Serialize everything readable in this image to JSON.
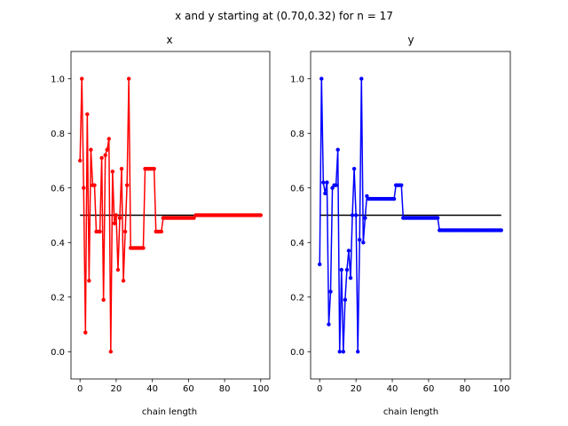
{
  "figure_title": "x and y starting at (0.70,0.32) for n = 17",
  "chart_data": [
    {
      "type": "line",
      "title": "x",
      "xlabel": "chain length",
      "ylabel": "",
      "xlim": [
        -5,
        105
      ],
      "ylim": [
        -0.1,
        1.1
      ],
      "xticks": [
        0,
        20,
        40,
        60,
        80,
        100
      ],
      "yticks": [
        0.0,
        0.2,
        0.4,
        0.6,
        0.8,
        1.0
      ],
      "xtick_labels": [
        "0",
        "20",
        "40",
        "60",
        "80",
        "100"
      ],
      "ytick_labels": [
        "0.0",
        "0.2",
        "0.4",
        "0.6",
        "0.8",
        "1.0"
      ],
      "series_color": "#ff0000",
      "reference_color": "#000000",
      "series": [
        {
          "x": [
            0,
            1,
            2,
            3,
            4,
            5,
            6,
            7,
            8,
            9,
            10,
            11,
            12,
            13,
            14,
            15,
            16,
            17,
            18,
            19,
            20,
            21,
            22,
            23,
            24,
            25,
            26,
            27,
            28,
            29,
            30,
            31,
            32,
            33,
            34,
            35,
            36,
            37,
            38,
            39,
            40,
            41,
            42,
            43,
            44,
            45,
            46,
            47,
            48,
            49,
            50,
            51,
            52,
            53,
            54,
            55,
            56,
            57,
            58,
            59,
            60,
            61,
            62,
            63,
            64,
            65,
            66,
            67,
            68,
            69,
            70,
            71,
            72,
            73,
            74,
            75,
            76,
            77,
            78,
            79,
            80,
            81,
            82,
            83,
            84,
            85,
            86,
            87,
            88,
            89,
            90,
            91,
            92,
            93,
            94,
            95,
            96,
            97,
            98,
            99,
            100
          ],
          "values": [
            0.7,
            1.0,
            0.6,
            0.07,
            0.87,
            0.26,
            0.74,
            0.61,
            0.61,
            0.44,
            0.44,
            0.44,
            0.71,
            0.19,
            0.72,
            0.74,
            0.78,
            0.0,
            0.66,
            0.47,
            0.5,
            0.3,
            0.49,
            0.67,
            0.26,
            0.44,
            0.61,
            1.0,
            0.38,
            0.38,
            0.38,
            0.38,
            0.38,
            0.38,
            0.38,
            0.38,
            0.67,
            0.67,
            0.67,
            0.67,
            0.67,
            0.67,
            0.44,
            0.44,
            0.44,
            0.44,
            0.49,
            0.49,
            0.49,
            0.49,
            0.49,
            0.49,
            0.49,
            0.49,
            0.49,
            0.49,
            0.49,
            0.49,
            0.49,
            0.49,
            0.49,
            0.49,
            0.49,
            0.49,
            0.5,
            0.5,
            0.5,
            0.5,
            0.5,
            0.5,
            0.5,
            0.5,
            0.5,
            0.5,
            0.5,
            0.5,
            0.5,
            0.5,
            0.5,
            0.5,
            0.5,
            0.5,
            0.5,
            0.5,
            0.5,
            0.5,
            0.5,
            0.5,
            0.5,
            0.5,
            0.5,
            0.5,
            0.5,
            0.5,
            0.5,
            0.5,
            0.5,
            0.5,
            0.5,
            0.5,
            0.5
          ]
        }
      ],
      "reference_line": {
        "x": [
          0,
          100
        ],
        "y": 0.5
      }
    },
    {
      "type": "line",
      "title": "y",
      "xlabel": "chain length",
      "ylabel": "",
      "xlim": [
        -5,
        105
      ],
      "ylim": [
        -0.1,
        1.1
      ],
      "xticks": [
        0,
        20,
        40,
        60,
        80,
        100
      ],
      "yticks": [
        0.0,
        0.2,
        0.4,
        0.6,
        0.8,
        1.0
      ],
      "xtick_labels": [
        "0",
        "20",
        "40",
        "60",
        "80",
        "100"
      ],
      "ytick_labels": [
        "0.0",
        "0.2",
        "0.4",
        "0.6",
        "0.8",
        "1.0"
      ],
      "series_color": "#0000ff",
      "reference_color": "#000000",
      "series": [
        {
          "x": [
            0,
            1,
            2,
            3,
            4,
            5,
            6,
            7,
            8,
            9,
            10,
            11,
            12,
            13,
            14,
            15,
            16,
            17,
            18,
            19,
            20,
            21,
            22,
            23,
            24,
            25,
            26,
            27,
            28,
            29,
            30,
            31,
            32,
            33,
            34,
            35,
            36,
            37,
            38,
            39,
            40,
            41,
            42,
            43,
            44,
            45,
            46,
            47,
            48,
            49,
            50,
            51,
            52,
            53,
            54,
            55,
            56,
            57,
            58,
            59,
            60,
            61,
            62,
            63,
            64,
            65,
            66,
            67,
            68,
            69,
            70,
            71,
            72,
            73,
            74,
            75,
            76,
            77,
            78,
            79,
            80,
            81,
            82,
            83,
            84,
            85,
            86,
            87,
            88,
            89,
            90,
            91,
            92,
            93,
            94,
            95,
            96,
            97,
            98,
            99,
            100
          ],
          "values": [
            0.32,
            1.0,
            0.62,
            0.58,
            0.62,
            0.1,
            0.22,
            0.6,
            0.61,
            0.61,
            0.74,
            0.0,
            0.3,
            0.0,
            0.19,
            0.3,
            0.37,
            0.27,
            0.5,
            0.67,
            0.5,
            0.0,
            0.41,
            1.0,
            0.4,
            0.49,
            0.57,
            0.56,
            0.56,
            0.56,
            0.56,
            0.56,
            0.56,
            0.56,
            0.56,
            0.56,
            0.56,
            0.56,
            0.56,
            0.56,
            0.56,
            0.56,
            0.61,
            0.61,
            0.61,
            0.61,
            0.49,
            0.49,
            0.49,
            0.49,
            0.49,
            0.49,
            0.49,
            0.49,
            0.49,
            0.49,
            0.49,
            0.49,
            0.49,
            0.49,
            0.49,
            0.49,
            0.49,
            0.49,
            0.49,
            0.49,
            0.445,
            0.445,
            0.445,
            0.445,
            0.445,
            0.445,
            0.445,
            0.445,
            0.445,
            0.445,
            0.445,
            0.445,
            0.445,
            0.445,
            0.445,
            0.445,
            0.445,
            0.445,
            0.445,
            0.445,
            0.445,
            0.445,
            0.445,
            0.445,
            0.445,
            0.445,
            0.445,
            0.445,
            0.445,
            0.445,
            0.445,
            0.445,
            0.445,
            0.445,
            0.445
          ]
        }
      ],
      "reference_line": {
        "x": [
          0,
          100
        ],
        "y": 0.5
      }
    }
  ]
}
